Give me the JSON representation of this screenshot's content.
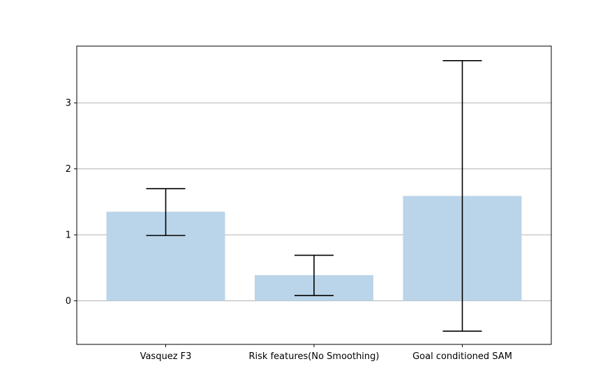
{
  "chart_data": {
    "type": "bar",
    "title": "",
    "xlabel": "",
    "ylabel": "",
    "categories": [
      "Vasquez F3",
      "Risk features(No Smoothing)",
      "Goal conditioned SAM"
    ],
    "values": [
      1.35,
      0.39,
      1.59
    ],
    "error_low": [
      0.99,
      0.08,
      -0.46
    ],
    "error_high": [
      1.7,
      0.69,
      3.64
    ],
    "ylim": [
      -0.66,
      3.86
    ],
    "yticks": [
      0,
      1,
      2,
      3
    ],
    "grid": "y",
    "legend": "none",
    "bar_color": "#bad5e9",
    "errorbar_color": "#000000",
    "grid_color": "#b0b0b0"
  }
}
